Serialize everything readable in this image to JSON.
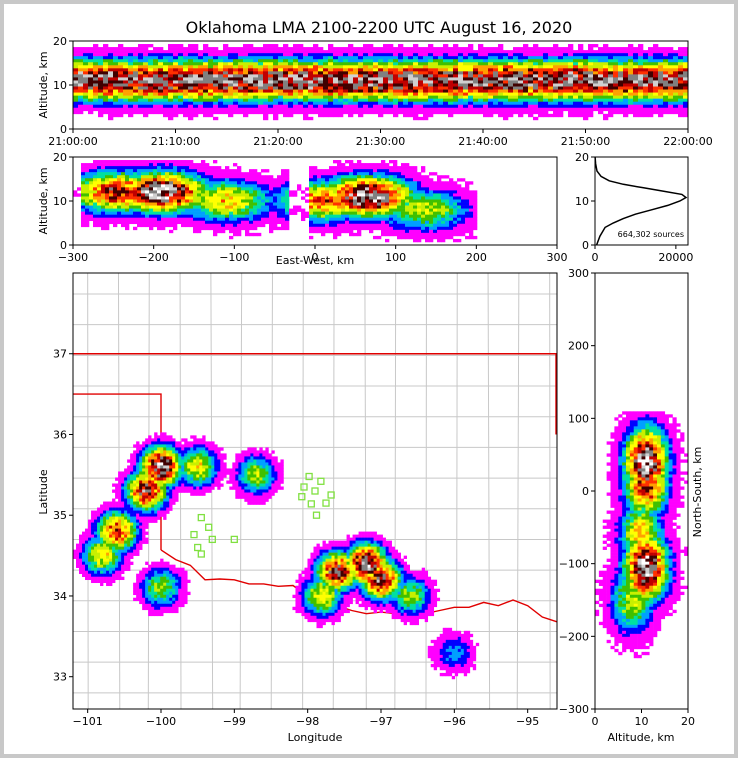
{
  "title": "Oklahoma LMA 2100-2200 UTC August 16, 2020",
  "source_count_label": "664,302 sources",
  "colors": {
    "density_ramp": [
      "#ffffff",
      "#ff00ff",
      "#0000ff",
      "#00a0ff",
      "#00e0a0",
      "#40c000",
      "#c8f000",
      "#ffff00",
      "#ffa000",
      "#ff3000",
      "#c00000",
      "#400000",
      "#808080",
      "#d0d0d0",
      "#ffffff"
    ],
    "state_border": "#e00000",
    "county_lines": "#c8c8c8",
    "station_marker": "#80e040"
  },
  "chart_data": [
    {
      "type": "heatmap",
      "panel": "time-altitude",
      "ylabel": "Altitude, km",
      "xlabel": "",
      "ylim": [
        0,
        20
      ],
      "y_ticks": [
        "0",
        "10",
        "20"
      ],
      "x_ticks": [
        "21:00:00",
        "21:10:00",
        "21:20:00",
        "21:30:00",
        "21:40:00",
        "21:50:00",
        "22:00:00"
      ],
      "xlim": [
        "21:00:00",
        "22:00:00"
      ],
      "description_values": {
        "peak_altitude_km": 11,
        "band_low_km": 2,
        "band_high_km": 19
      }
    },
    {
      "type": "heatmap",
      "panel": "east-west-altitude",
      "xlabel": "East-West, km",
      "ylabel": "Altitude, km",
      "xlim": [
        -300,
        300
      ],
      "ylim": [
        0,
        20
      ],
      "x_ticks": [
        "−300",
        "−200",
        "−100",
        "0",
        "100",
        "200",
        "300"
      ],
      "y_ticks": [
        "0",
        "10",
        "20"
      ],
      "cores": [
        {
          "x_km": -190,
          "alt_km": 12,
          "intensity": 1.0
        },
        {
          "x_km": -245,
          "alt_km": 12,
          "intensity": 0.8
        },
        {
          "x_km": -110,
          "alt_km": 10,
          "intensity": 0.6
        },
        {
          "x_km": 65,
          "alt_km": 11,
          "intensity": 1.0
        },
        {
          "x_km": 10,
          "alt_km": 10,
          "intensity": 0.7
        },
        {
          "x_km": 135,
          "alt_km": 8,
          "intensity": 0.5
        }
      ]
    },
    {
      "type": "line",
      "panel": "altitude-histogram",
      "xlim": [
        0,
        23000
      ],
      "ylim": [
        0,
        20
      ],
      "x_ticks": [
        "0",
        "20000"
      ],
      "y_ticks": [
        "0",
        "10",
        "20"
      ],
      "series": [
        {
          "name": "sources",
          "x": [
            400,
            1200,
            2500,
            4500,
            7000,
            10000,
            14000,
            18000,
            21000,
            22500,
            21500,
            17000,
            12000,
            7000,
            3500,
            1500,
            500,
            150,
            20
          ],
          "y": [
            0,
            2,
            4,
            5,
            6,
            7,
            8,
            9,
            10,
            10.8,
            11.5,
            12.2,
            13,
            13.8,
            14.6,
            15.6,
            16.8,
            18.5,
            20
          ]
        }
      ]
    },
    {
      "type": "heatmap",
      "panel": "plan-view",
      "xlabel": "Longitude",
      "ylabel": "Latitude",
      "xlim": [
        -101.2,
        -94.6
      ],
      "ylim": [
        32.6,
        38.0
      ],
      "x_ticks": [
        "−101",
        "−100",
        "−99",
        "−98",
        "−97",
        "−96",
        "−95"
      ],
      "y_ticks": [
        "33",
        "34",
        "35",
        "36",
        "37"
      ],
      "cores": [
        {
          "lon": -100.0,
          "lat": 35.6,
          "intensity": 1.0
        },
        {
          "lon": -100.2,
          "lat": 35.3,
          "intensity": 0.9
        },
        {
          "lon": -100.6,
          "lat": 34.8,
          "intensity": 0.8
        },
        {
          "lon": -100.8,
          "lat": 34.5,
          "intensity": 0.6
        },
        {
          "lon": -99.5,
          "lat": 35.6,
          "intensity": 0.6
        },
        {
          "lon": -98.7,
          "lat": 35.5,
          "intensity": 0.5
        },
        {
          "lon": -100.0,
          "lat": 34.1,
          "intensity": 0.5
        },
        {
          "lon": -97.2,
          "lat": 34.4,
          "intensity": 1.0
        },
        {
          "lon": -97.6,
          "lat": 34.3,
          "intensity": 0.9
        },
        {
          "lon": -97.0,
          "lat": 34.2,
          "intensity": 0.9
        },
        {
          "lon": -97.8,
          "lat": 34.0,
          "intensity": 0.6
        },
        {
          "lon": -96.6,
          "lat": 34.0,
          "intensity": 0.5
        },
        {
          "lon": -96.0,
          "lat": 33.3,
          "intensity": 0.3
        }
      ],
      "stations": [
        {
          "lon": -97.98,
          "lat": 35.48
        },
        {
          "lon": -97.82,
          "lat": 35.42
        },
        {
          "lon": -98.05,
          "lat": 35.35
        },
        {
          "lon": -97.9,
          "lat": 35.3
        },
        {
          "lon": -98.08,
          "lat": 35.23
        },
        {
          "lon": -97.68,
          "lat": 35.25
        },
        {
          "lon": -97.75,
          "lat": 35.15
        },
        {
          "lon": -97.95,
          "lat": 35.14
        },
        {
          "lon": -97.88,
          "lat": 35.0
        },
        {
          "lon": -99.45,
          "lat": 34.97
        },
        {
          "lon": -99.35,
          "lat": 34.85
        },
        {
          "lon": -99.55,
          "lat": 34.76
        },
        {
          "lon": -99.3,
          "lat": 34.7
        },
        {
          "lon": -99.5,
          "lat": 34.6
        },
        {
          "lon": -99.45,
          "lat": 34.52
        },
        {
          "lon": -99.0,
          "lat": 34.7
        }
      ]
    },
    {
      "type": "heatmap",
      "panel": "altitude-north-south",
      "xlabel": "Altitude, km",
      "ylabel": "North-South, km",
      "xlim": [
        0,
        20
      ],
      "ylim": [
        -300,
        300
      ],
      "x_ticks": [
        "0",
        "10",
        "20"
      ],
      "y_ticks": [
        "−300",
        "−200",
        "−100",
        "0",
        "100",
        "200",
        "300"
      ],
      "cores": [
        {
          "ns_km": 40,
          "alt_km": 11,
          "intensity": 1.0
        },
        {
          "ns_km": 10,
          "alt_km": 11,
          "intensity": 0.8
        },
        {
          "ns_km": -105,
          "alt_km": 11,
          "intensity": 1.0
        },
        {
          "ns_km": -60,
          "alt_km": 10,
          "intensity": 0.6
        },
        {
          "ns_km": -150,
          "alt_km": 8,
          "intensity": 0.5
        }
      ]
    }
  ]
}
